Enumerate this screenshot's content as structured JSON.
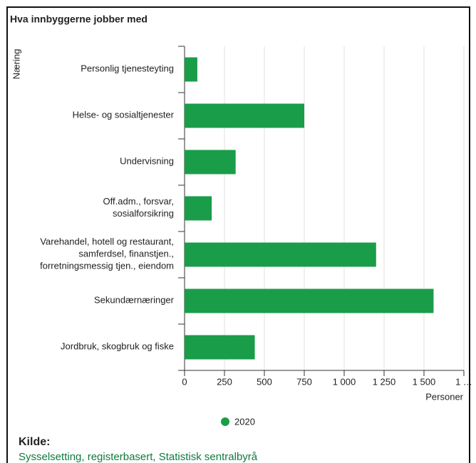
{
  "chart_data": {
    "type": "bar",
    "orientation": "horizontal",
    "title": "Hva innbyggerne jobber med",
    "y_label": "Næring",
    "x_label": "Personer",
    "categories": [
      "Personlig tjenesteyting",
      "Helse- og sosialtjenester",
      "Undervisning",
      "Off.adm., forsvar,\nsosialforsikring",
      "Varehandel, hotell og restaurant,\nsamferdsel, finanstjen.,\nforretningsmessig tjen., eiendom",
      "Sekundærnæringer",
      "Jordbruk, skogbruk og fiske"
    ],
    "series": [
      {
        "name": "2020",
        "color": "#1a9d49",
        "values": [
          80,
          750,
          320,
          170,
          1200,
          1560,
          440
        ]
      }
    ],
    "xlim": [
      0,
      1750
    ],
    "xticks": [
      0,
      250,
      500,
      750,
      {
        "value": 1000,
        "label": "1 000"
      },
      {
        "value": 1250,
        "label": "1 250"
      },
      {
        "value": 1500,
        "label": "1 500"
      },
      {
        "value": 1750,
        "label": "1 …"
      }
    ],
    "grid": true
  },
  "source": {
    "heading": "Kilde:",
    "link": "Sysselsetting, registerbasert, Statistisk sentralbyrå"
  }
}
